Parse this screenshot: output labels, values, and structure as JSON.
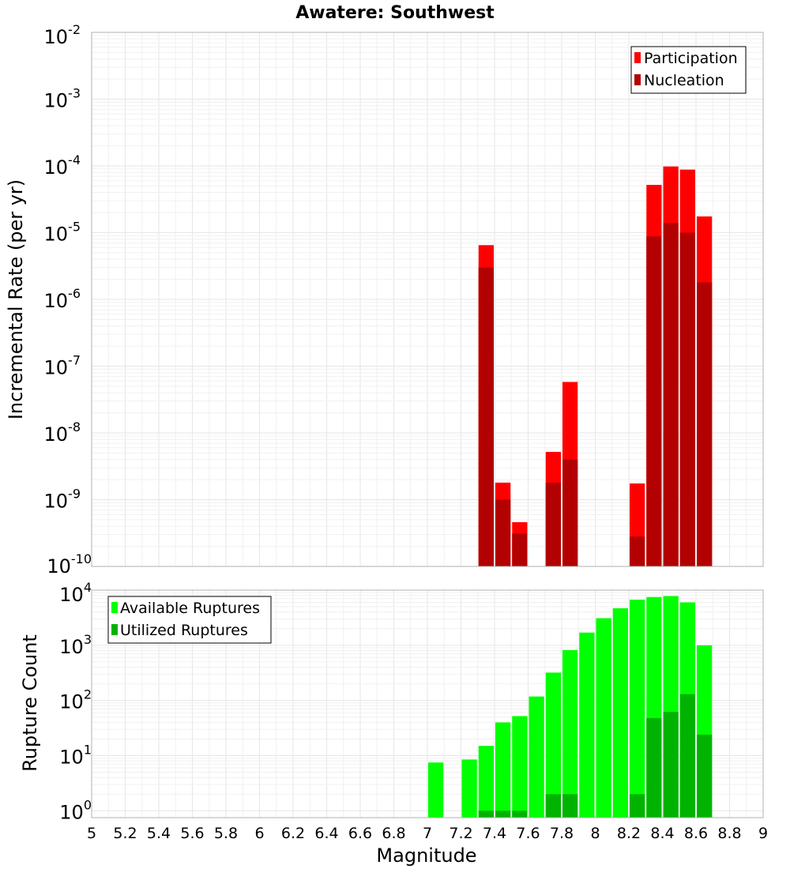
{
  "chart_data": [
    {
      "type": "bar",
      "title": "Awatere: Southwest",
      "ylabel": "Incremental Rate (per yr)",
      "xlabel": "",
      "yscale": "log",
      "ylim_exponents": [
        -10,
        -2
      ],
      "ytick_exponents": [
        -2,
        -3,
        -4,
        -5,
        -6,
        -7,
        -8,
        -9,
        -10
      ],
      "xlim": [
        5,
        9
      ],
      "bar_width": 0.1,
      "grid": true,
      "legend_position": "top-right",
      "series": [
        {
          "name": "Participation",
          "color": "#ff0000",
          "points": [
            {
              "x": 7.35,
              "y": 6.5e-06
            },
            {
              "x": 7.45,
              "y": 1.8e-09
            },
            {
              "x": 7.55,
              "y": 4.6e-10
            },
            {
              "x": 7.75,
              "y": 5.2e-09
            },
            {
              "x": 7.85,
              "y": 5.8e-08
            },
            {
              "x": 8.25,
              "y": 1.75e-09
            },
            {
              "x": 8.35,
              "y": 5.2e-05
            },
            {
              "x": 8.45,
              "y": 9.8e-05
            },
            {
              "x": 8.55,
              "y": 8.8e-05
            },
            {
              "x": 8.65,
              "y": 1.75e-05
            }
          ]
        },
        {
          "name": "Nucleation",
          "color": "#b30000",
          "points": [
            {
              "x": 7.35,
              "y": 3e-06
            },
            {
              "x": 7.45,
              "y": 1e-09
            },
            {
              "x": 7.55,
              "y": 3.1e-10
            },
            {
              "x": 7.75,
              "y": 1.8e-09
            },
            {
              "x": 7.85,
              "y": 4e-09
            },
            {
              "x": 8.25,
              "y": 2.8e-10
            },
            {
              "x": 8.35,
              "y": 8.8e-06
            },
            {
              "x": 8.45,
              "y": 1.4e-05
            },
            {
              "x": 8.55,
              "y": 1e-05
            },
            {
              "x": 8.65,
              "y": 1.8e-06
            }
          ]
        }
      ]
    },
    {
      "type": "bar",
      "title": "",
      "ylabel": "Rupture Count",
      "xlabel": "Magnitude",
      "yscale": "log",
      "ylim": [
        0.75,
        10000
      ],
      "ytick_exponents": [
        4,
        3,
        2,
        1,
        0
      ],
      "xlim": [
        5,
        9
      ],
      "xticks": [
        "5",
        "5.2",
        "5.4",
        "5.6",
        "5.8",
        "6",
        "6.2",
        "6.4",
        "6.6",
        "6.8",
        "7",
        "7.2",
        "7.4",
        "7.6",
        "7.8",
        "8",
        "8.2",
        "8.4",
        "8.6",
        "8.8",
        "9"
      ],
      "bar_width": 0.1,
      "grid": true,
      "legend_position": "top-left",
      "series": [
        {
          "name": "Available Ruptures",
          "color": "#00ff00",
          "points": [
            {
              "x": 7.05,
              "y": 7.5
            },
            {
              "x": 7.25,
              "y": 8.5
            },
            {
              "x": 7.35,
              "y": 15
            },
            {
              "x": 7.45,
              "y": 40
            },
            {
              "x": 7.55,
              "y": 52
            },
            {
              "x": 7.65,
              "y": 118
            },
            {
              "x": 7.75,
              "y": 320
            },
            {
              "x": 7.85,
              "y": 820
            },
            {
              "x": 7.95,
              "y": 1700
            },
            {
              "x": 8.05,
              "y": 3100
            },
            {
              "x": 8.15,
              "y": 4700
            },
            {
              "x": 8.25,
              "y": 6700
            },
            {
              "x": 8.35,
              "y": 7500
            },
            {
              "x": 8.45,
              "y": 7800
            },
            {
              "x": 8.55,
              "y": 6000
            },
            {
              "x": 8.65,
              "y": 1000
            }
          ]
        },
        {
          "name": "Utilized Ruptures",
          "color": "#00b300",
          "points": [
            {
              "x": 7.35,
              "y": 1
            },
            {
              "x": 7.45,
              "y": 1
            },
            {
              "x": 7.55,
              "y": 1
            },
            {
              "x": 7.75,
              "y": 2
            },
            {
              "x": 7.85,
              "y": 2
            },
            {
              "x": 8.25,
              "y": 2
            },
            {
              "x": 8.35,
              "y": 48
            },
            {
              "x": 8.45,
              "y": 62
            },
            {
              "x": 8.55,
              "y": 130
            },
            {
              "x": 8.65,
              "y": 24
            }
          ]
        }
      ]
    }
  ]
}
